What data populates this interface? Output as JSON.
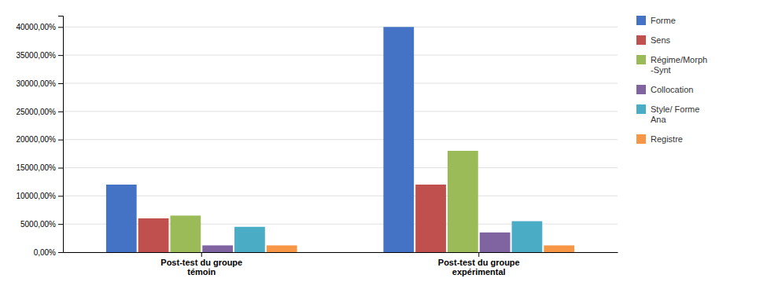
{
  "chart_data": {
    "type": "bar",
    "categories": [
      "Post-test du groupe\ntémoin",
      "Post-test du groupe\nexpérimental"
    ],
    "series": [
      {
        "name": "Forme",
        "color": "#4472C4",
        "values": [
          12000,
          40000
        ]
      },
      {
        "name": "Sens",
        "color": "#C0504D",
        "values": [
          6000,
          12000
        ]
      },
      {
        "name": "Régime/Morph\n-Synt",
        "color": "#9BBB59",
        "values": [
          6500,
          18000
        ]
      },
      {
        "name": "Collocation",
        "color": "#8064A2",
        "values": [
          1200,
          3500
        ]
      },
      {
        "name": "Style/ Forme\nAna",
        "color": "#4BACC6",
        "values": [
          4500,
          5500
        ]
      },
      {
        "name": "Registre",
        "color": "#F79646",
        "values": [
          1200,
          1200
        ]
      }
    ],
    "ylim": [
      0,
      42000
    ],
    "yticks": [
      {
        "value": 0,
        "label": "0,00%"
      },
      {
        "value": 5000,
        "label": "5000,00%"
      },
      {
        "value": 10000,
        "label": "10000,00%"
      },
      {
        "value": 15000,
        "label": "15000,00%"
      },
      {
        "value": 20000,
        "label": "20000,00%"
      },
      {
        "value": 25000,
        "label": "25000,00%"
      },
      {
        "value": 30000,
        "label": "30000,00%"
      },
      {
        "value": 35000,
        "label": "35000,00%"
      },
      {
        "value": 40000,
        "label": "40000,00%"
      }
    ],
    "grid": true,
    "legend": "right"
  }
}
